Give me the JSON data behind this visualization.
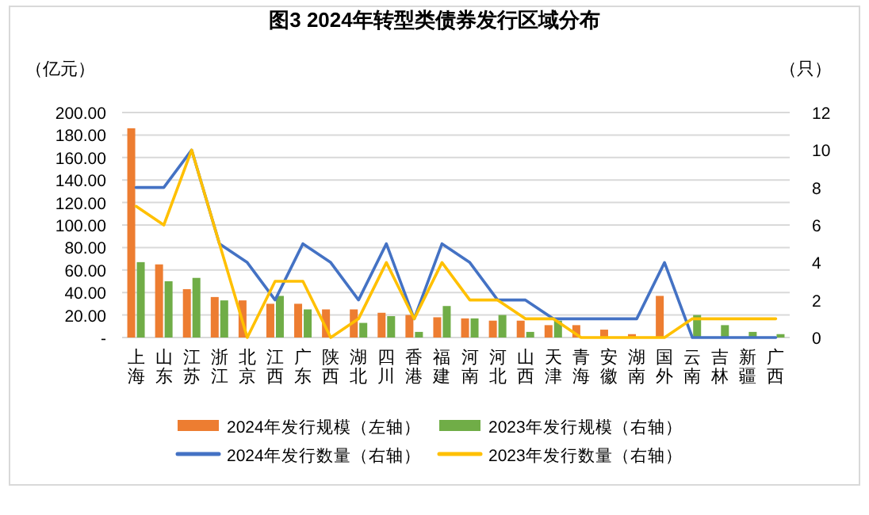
{
  "chart_data": {
    "type": "bar",
    "title": "图3 2024年转型类债券发行区域分布",
    "ylabel": "（亿元）",
    "y2label": "（只）",
    "categories": [
      "上海",
      "山东",
      "江苏",
      "浙江",
      "北京",
      "江西",
      "广东",
      "陕西",
      "湖北",
      "四川",
      "香港",
      "福建",
      "河南",
      "河北",
      "山西",
      "天津",
      "青海",
      "安徽",
      "湖南",
      "国外",
      "云南",
      "吉林",
      "新疆",
      "广西"
    ],
    "series": [
      {
        "name": "2024年发行规模（左轴）",
        "color": "#ed7d31",
        "values": [
          186,
          65,
          43,
          36,
          33,
          30,
          30,
          25,
          25,
          22,
          20,
          18,
          17,
          15,
          15,
          11,
          11,
          7,
          3,
          37,
          0,
          0,
          0,
          0
        ]
      },
      {
        "name": "2023年发行规模（右轴）",
        "color": "#70ad47",
        "values": [
          67,
          50,
          53,
          33,
          0,
          37,
          25,
          0,
          13,
          19,
          5,
          28,
          17,
          20,
          5,
          15,
          0,
          0,
          0,
          0,
          20,
          11,
          5,
          3
        ]
      },
      {
        "name": "2024年发行数量（右轴）",
        "type": "line",
        "axis": "y2",
        "color": "#4472c4",
        "values": [
          8,
          8,
          10,
          5,
          4,
          2,
          5,
          4,
          2,
          5,
          1,
          5,
          4,
          2,
          2,
          1,
          1,
          1,
          1,
          4,
          0,
          0,
          0,
          0
        ]
      },
      {
        "name": "2023年发行数量（右轴）",
        "type": "line",
        "axis": "y2",
        "color": "#ffc000",
        "values": [
          7,
          6,
          10,
          5,
          0,
          3,
          3,
          0,
          1,
          4,
          1,
          4,
          2,
          2,
          1,
          1,
          0,
          0,
          0,
          0,
          1,
          1,
          1,
          1
        ]
      }
    ],
    "ylim": [
      0,
      200
    ],
    "yticks": [
      {
        "value": 0,
        "label": "-"
      },
      {
        "value": 20,
        "label": "20.00"
      },
      {
        "value": 40,
        "label": "40.00"
      },
      {
        "value": 60,
        "label": "60.00"
      },
      {
        "value": 80,
        "label": "80.00"
      },
      {
        "value": 100,
        "label": "100.00"
      },
      {
        "value": 120,
        "label": "120.00"
      },
      {
        "value": 140,
        "label": "140.00"
      },
      {
        "value": 160,
        "label": "160.00"
      },
      {
        "value": 180,
        "label": "180.00"
      },
      {
        "value": 200,
        "label": "200.00"
      }
    ],
    "y2lim": [
      0,
      12
    ],
    "y2ticks": [
      0,
      2,
      4,
      6,
      8,
      10,
      12
    ],
    "grid": "y",
    "legend": "bottom"
  }
}
